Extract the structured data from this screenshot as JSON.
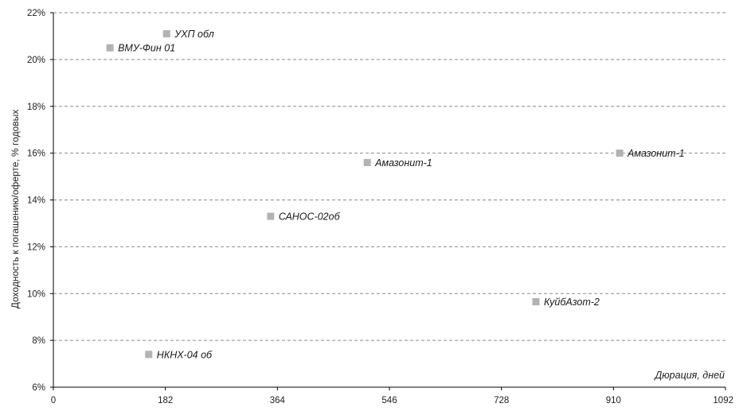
{
  "chart_data": {
    "type": "scatter",
    "title": "",
    "xlabel": "Дюрация, дней",
    "ylabel": "Доходность к погашению/оферте, % годовых",
    "xlim": [
      0,
      1092
    ],
    "ylim": [
      6,
      22
    ],
    "x_ticks": [
      0,
      182,
      364,
      546,
      728,
      910,
      1092
    ],
    "x_tick_labels": [
      "0",
      "182",
      "364",
      "546",
      "728",
      "910",
      "1092"
    ],
    "y_ticks": [
      6,
      8,
      10,
      12,
      14,
      16,
      18,
      20,
      22
    ],
    "y_tick_labels": [
      "6%",
      "8%",
      "10%",
      "12%",
      "14%",
      "16%",
      "18%",
      "20%",
      "22%"
    ],
    "grid": "horizontal dashed",
    "marker_color": "#b3b3b3",
    "grid_color": "#8c8c8c",
    "axis_color": "#000000",
    "points": [
      {
        "label": "УХП обл",
        "x": 184,
        "y": 21.1
      },
      {
        "label": "ВМУ-Фин 01",
        "x": 92,
        "y": 20.5
      },
      {
        "label": "Амазонит-1",
        "x": 510,
        "y": 15.6
      },
      {
        "label": "Амазонит-1",
        "x": 920,
        "y": 16.0
      },
      {
        "label": "САНОС-02об",
        "x": 353,
        "y": 13.3
      },
      {
        "label": "КуйбАзот-2",
        "x": 784,
        "y": 9.65
      },
      {
        "label": "НКНХ-04 об",
        "x": 155,
        "y": 7.4
      }
    ]
  }
}
